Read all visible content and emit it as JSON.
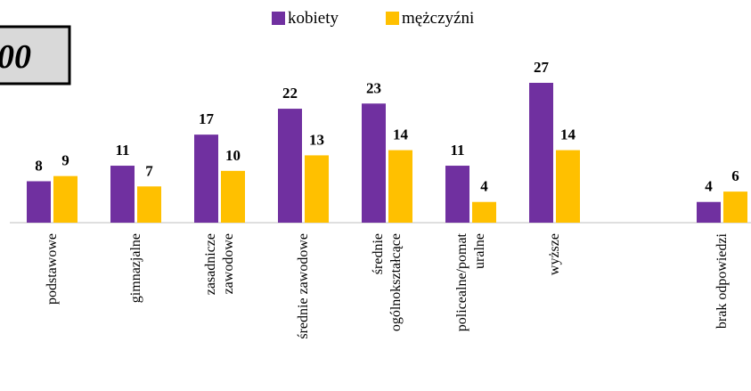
{
  "chart_data": {
    "type": "bar",
    "annotation": "00",
    "categories": [
      "podstawowe",
      "gimnazjalne",
      "zasadnicze\nzawodowe",
      "średnie zawodowe",
      "średnie\nogólnokształcące",
      "policealne/pomat\nuralne",
      "wyższe",
      null,
      "brak odpowiedzi"
    ],
    "series": [
      {
        "name": "kobiety",
        "color": "#7030a0",
        "values": [
          8,
          11,
          17,
          22,
          23,
          11,
          27,
          null,
          4
        ]
      },
      {
        "name": "mężczyźni",
        "color": "#ffc000",
        "values": [
          9,
          7,
          10,
          13,
          14,
          4,
          14,
          null,
          6
        ]
      }
    ],
    "ylim": [
      0,
      27
    ],
    "legend": "top"
  }
}
